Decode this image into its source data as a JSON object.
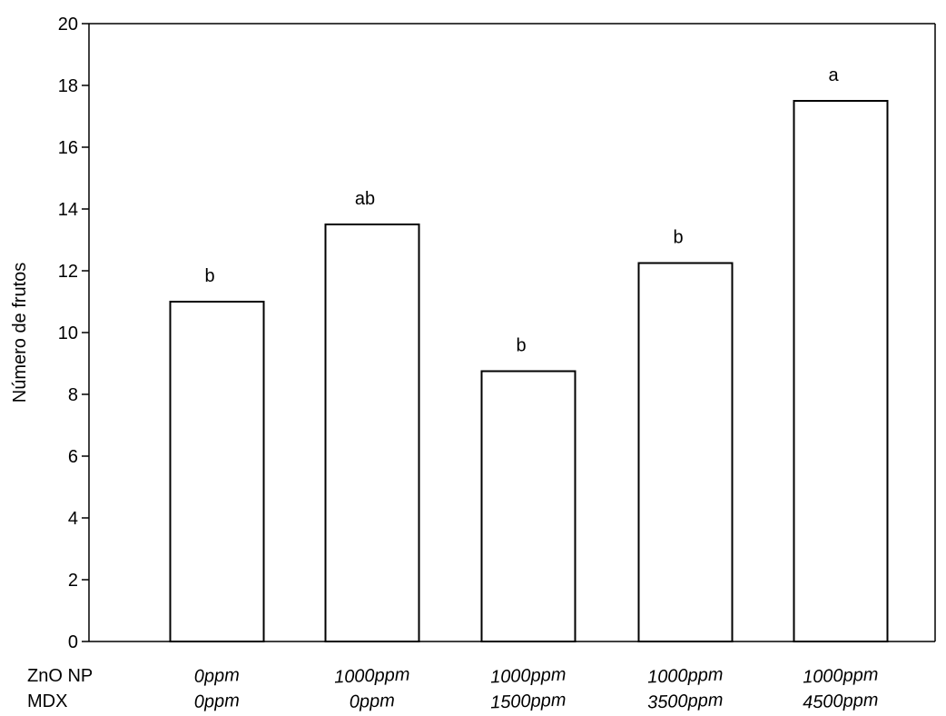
{
  "chart_data": {
    "type": "bar",
    "categories": [
      {
        "zno_np": "0ppm",
        "mdx": "0ppm"
      },
      {
        "zno_np": "1000ppm",
        "mdx": "0ppm"
      },
      {
        "zno_np": "1000ppm",
        "mdx": "1500ppm"
      },
      {
        "zno_np": "1000ppm",
        "mdx": "3500ppm"
      },
      {
        "zno_np": "1000ppm",
        "mdx": "4500ppm"
      }
    ],
    "values": [
      11.0,
      13.5,
      8.75,
      12.25,
      17.5
    ],
    "significance_letters": [
      "b",
      "ab",
      "b",
      "b",
      "a"
    ],
    "group_labels": [
      "ZnO NP",
      "MDX"
    ],
    "ylabel": "Número de frutos",
    "xlabel": "",
    "title": "",
    "ylim": [
      0,
      20
    ],
    "yticks": [
      0,
      2,
      4,
      6,
      8,
      10,
      12,
      14,
      16,
      18,
      20
    ],
    "grid": false,
    "bar_fill": "#ffffff",
    "bar_stroke": "#000000"
  }
}
